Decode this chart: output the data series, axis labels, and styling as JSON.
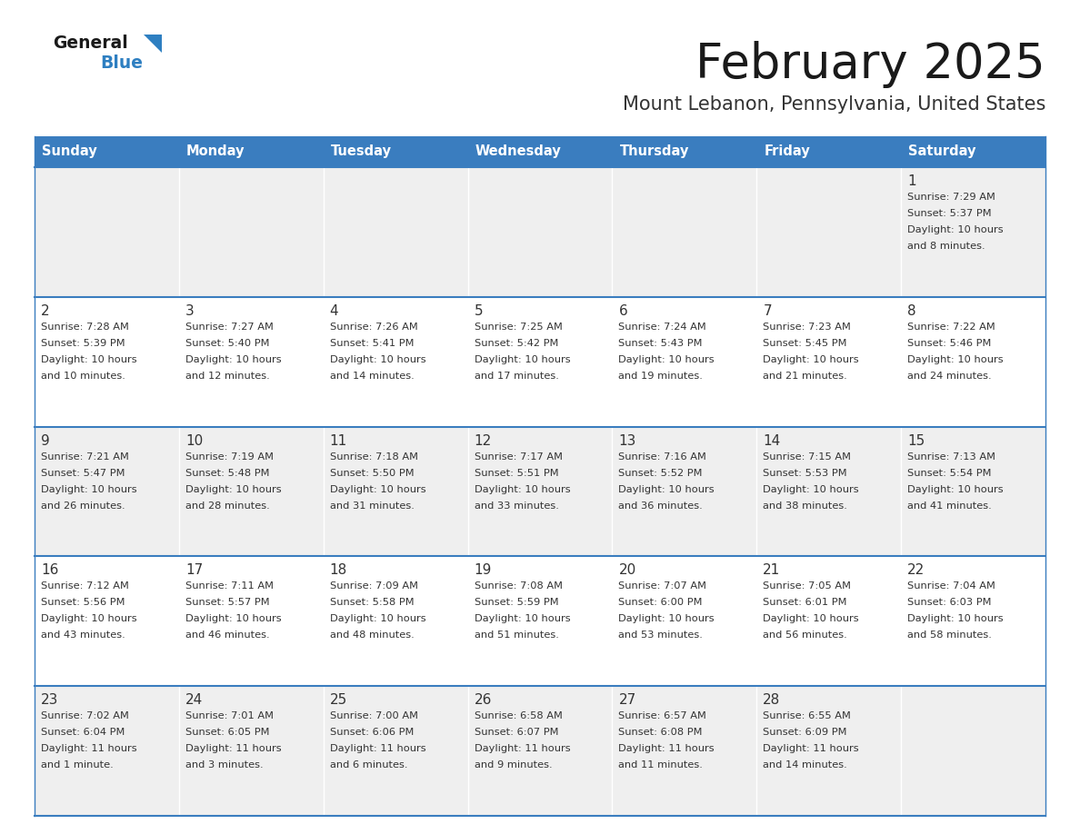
{
  "title": "February 2025",
  "subtitle": "Mount Lebanon, Pennsylvania, United States",
  "days_of_week": [
    "Sunday",
    "Monday",
    "Tuesday",
    "Wednesday",
    "Thursday",
    "Friday",
    "Saturday"
  ],
  "header_bg": "#3a7dbf",
  "header_text": "#ffffff",
  "cell_bg_light": "#efefef",
  "cell_bg_white": "#ffffff",
  "cell_text": "#333333",
  "border_color": "#3a7dbf",
  "title_color": "#1a1a1a",
  "subtitle_color": "#333333",
  "logo_general_color": "#1a1a1a",
  "logo_blue_color": "#2e7fc1",
  "calendar_data": [
    [
      null,
      null,
      null,
      null,
      null,
      null,
      {
        "day": "1",
        "sunrise": "7:29 AM",
        "sunset": "5:37 PM",
        "daylight_line1": "Daylight: 10 hours",
        "daylight_line2": "and 8 minutes."
      }
    ],
    [
      {
        "day": "2",
        "sunrise": "7:28 AM",
        "sunset": "5:39 PM",
        "daylight_line1": "Daylight: 10 hours",
        "daylight_line2": "and 10 minutes."
      },
      {
        "day": "3",
        "sunrise": "7:27 AM",
        "sunset": "5:40 PM",
        "daylight_line1": "Daylight: 10 hours",
        "daylight_line2": "and 12 minutes."
      },
      {
        "day": "4",
        "sunrise": "7:26 AM",
        "sunset": "5:41 PM",
        "daylight_line1": "Daylight: 10 hours",
        "daylight_line2": "and 14 minutes."
      },
      {
        "day": "5",
        "sunrise": "7:25 AM",
        "sunset": "5:42 PM",
        "daylight_line1": "Daylight: 10 hours",
        "daylight_line2": "and 17 minutes."
      },
      {
        "day": "6",
        "sunrise": "7:24 AM",
        "sunset": "5:43 PM",
        "daylight_line1": "Daylight: 10 hours",
        "daylight_line2": "and 19 minutes."
      },
      {
        "day": "7",
        "sunrise": "7:23 AM",
        "sunset": "5:45 PM",
        "daylight_line1": "Daylight: 10 hours",
        "daylight_line2": "and 21 minutes."
      },
      {
        "day": "8",
        "sunrise": "7:22 AM",
        "sunset": "5:46 PM",
        "daylight_line1": "Daylight: 10 hours",
        "daylight_line2": "and 24 minutes."
      }
    ],
    [
      {
        "day": "9",
        "sunrise": "7:21 AM",
        "sunset": "5:47 PM",
        "daylight_line1": "Daylight: 10 hours",
        "daylight_line2": "and 26 minutes."
      },
      {
        "day": "10",
        "sunrise": "7:19 AM",
        "sunset": "5:48 PM",
        "daylight_line1": "Daylight: 10 hours",
        "daylight_line2": "and 28 minutes."
      },
      {
        "day": "11",
        "sunrise": "7:18 AM",
        "sunset": "5:50 PM",
        "daylight_line1": "Daylight: 10 hours",
        "daylight_line2": "and 31 minutes."
      },
      {
        "day": "12",
        "sunrise": "7:17 AM",
        "sunset": "5:51 PM",
        "daylight_line1": "Daylight: 10 hours",
        "daylight_line2": "and 33 minutes."
      },
      {
        "day": "13",
        "sunrise": "7:16 AM",
        "sunset": "5:52 PM",
        "daylight_line1": "Daylight: 10 hours",
        "daylight_line2": "and 36 minutes."
      },
      {
        "day": "14",
        "sunrise": "7:15 AM",
        "sunset": "5:53 PM",
        "daylight_line1": "Daylight: 10 hours",
        "daylight_line2": "and 38 minutes."
      },
      {
        "day": "15",
        "sunrise": "7:13 AM",
        "sunset": "5:54 PM",
        "daylight_line1": "Daylight: 10 hours",
        "daylight_line2": "and 41 minutes."
      }
    ],
    [
      {
        "day": "16",
        "sunrise": "7:12 AM",
        "sunset": "5:56 PM",
        "daylight_line1": "Daylight: 10 hours",
        "daylight_line2": "and 43 minutes."
      },
      {
        "day": "17",
        "sunrise": "7:11 AM",
        "sunset": "5:57 PM",
        "daylight_line1": "Daylight: 10 hours",
        "daylight_line2": "and 46 minutes."
      },
      {
        "day": "18",
        "sunrise": "7:09 AM",
        "sunset": "5:58 PM",
        "daylight_line1": "Daylight: 10 hours",
        "daylight_line2": "and 48 minutes."
      },
      {
        "day": "19",
        "sunrise": "7:08 AM",
        "sunset": "5:59 PM",
        "daylight_line1": "Daylight: 10 hours",
        "daylight_line2": "and 51 minutes."
      },
      {
        "day": "20",
        "sunrise": "7:07 AM",
        "sunset": "6:00 PM",
        "daylight_line1": "Daylight: 10 hours",
        "daylight_line2": "and 53 minutes."
      },
      {
        "day": "21",
        "sunrise": "7:05 AM",
        "sunset": "6:01 PM",
        "daylight_line1": "Daylight: 10 hours",
        "daylight_line2": "and 56 minutes."
      },
      {
        "day": "22",
        "sunrise": "7:04 AM",
        "sunset": "6:03 PM",
        "daylight_line1": "Daylight: 10 hours",
        "daylight_line2": "and 58 minutes."
      }
    ],
    [
      {
        "day": "23",
        "sunrise": "7:02 AM",
        "sunset": "6:04 PM",
        "daylight_line1": "Daylight: 11 hours",
        "daylight_line2": "and 1 minute."
      },
      {
        "day": "24",
        "sunrise": "7:01 AM",
        "sunset": "6:05 PM",
        "daylight_line1": "Daylight: 11 hours",
        "daylight_line2": "and 3 minutes."
      },
      {
        "day": "25",
        "sunrise": "7:00 AM",
        "sunset": "6:06 PM",
        "daylight_line1": "Daylight: 11 hours",
        "daylight_line2": "and 6 minutes."
      },
      {
        "day": "26",
        "sunrise": "6:58 AM",
        "sunset": "6:07 PM",
        "daylight_line1": "Daylight: 11 hours",
        "daylight_line2": "and 9 minutes."
      },
      {
        "day": "27",
        "sunrise": "6:57 AM",
        "sunset": "6:08 PM",
        "daylight_line1": "Daylight: 11 hours",
        "daylight_line2": "and 11 minutes."
      },
      {
        "day": "28",
        "sunrise": "6:55 AM",
        "sunset": "6:09 PM",
        "daylight_line1": "Daylight: 11 hours",
        "daylight_line2": "and 14 minutes."
      },
      null
    ]
  ]
}
